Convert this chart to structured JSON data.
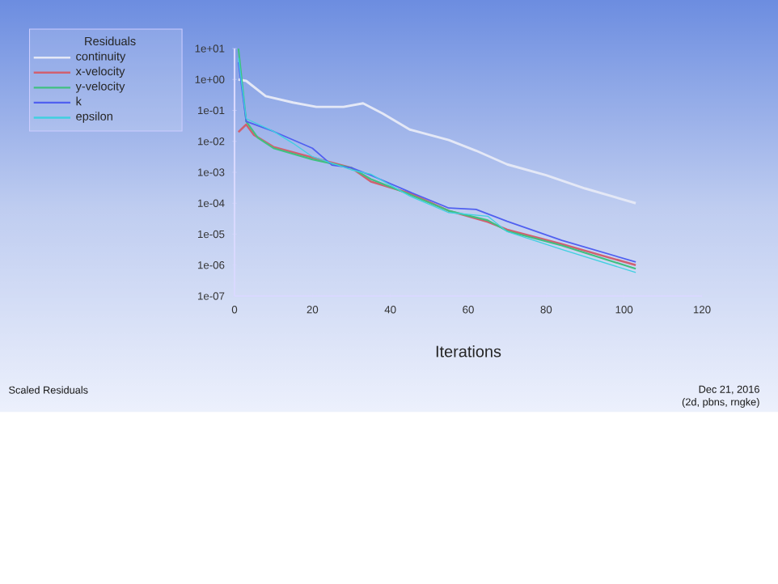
{
  "chart_data": {
    "type": "line",
    "xlabel": "Iterations",
    "legend_title": "Residuals",
    "annotations": [
      "Scaled Residuals",
      "Dec 21, 2016",
      "(2d, pbns, rngke)"
    ],
    "xlim": [
      0,
      120
    ],
    "xticks": [
      0,
      20,
      40,
      60,
      80,
      100,
      120
    ],
    "ylim": [
      1e-07,
      10
    ],
    "yticks": [
      {
        "value": 1e-07,
        "label": "1e-07"
      },
      {
        "value": 1e-06,
        "label": "1e-06"
      },
      {
        "value": 1e-05,
        "label": "1e-05"
      },
      {
        "value": 0.0001,
        "label": "1e-04"
      },
      {
        "value": 0.001,
        "label": "1e-03"
      },
      {
        "value": 0.01,
        "label": "1e-02"
      },
      {
        "value": 0.1,
        "label": "1e-01"
      },
      {
        "value": 1,
        "label": "1e+00"
      },
      {
        "value": 10,
        "label": "1e+01"
      }
    ],
    "log": "y",
    "grid": false,
    "legend": "top left",
    "marker": "none",
    "line_style": "solid",
    "series": [
      {
        "name": "continuity",
        "color": "#e4e8f6",
        "x": [
          1,
          3,
          8,
          15,
          21,
          28,
          33,
          38,
          45,
          55,
          62,
          70,
          80,
          90,
          103
        ],
        "values": [
          1.0,
          0.9,
          0.29,
          0.18,
          0.13,
          0.13,
          0.17,
          0.08,
          0.024,
          0.011,
          0.005,
          0.0018,
          0.0008,
          0.0003,
          0.0001
        ]
      },
      {
        "name": "x-velocity",
        "color": "#d06070",
        "x": [
          1,
          3,
          5,
          10,
          20,
          30,
          35,
          45,
          55,
          65,
          70,
          84,
          103
        ],
        "values": [
          0.02,
          0.035,
          0.016,
          0.0066,
          0.003,
          0.0014,
          0.0005,
          0.00021,
          5.7e-05,
          2.5e-05,
          1.4e-05,
          4.8e-06,
          1e-06
        ]
      },
      {
        "name": "y-velocity",
        "color": "#40c080",
        "x": [
          1,
          3,
          6,
          10,
          20,
          30,
          35,
          45,
          55,
          65,
          70,
          84,
          103
        ],
        "values": [
          10,
          0.044,
          0.013,
          0.006,
          0.0026,
          0.0014,
          0.0006,
          0.00019,
          5.7e-05,
          2.8e-05,
          1.26e-05,
          4.3e-06,
          7.6e-07
        ]
      },
      {
        "name": "k",
        "color": "#5060f0",
        "x": [
          1,
          3,
          10,
          20,
          25,
          30,
          35,
          45,
          55,
          62,
          70,
          84,
          103
        ],
        "values": [
          3.6,
          0.044,
          0.021,
          0.006,
          0.0017,
          0.0014,
          0.0008,
          0.00023,
          7e-05,
          6.3e-05,
          2.6e-05,
          6.3e-06,
          1.26e-06
        ]
      },
      {
        "name": "epsilon",
        "color": "#40d0e0",
        "x": [
          1,
          3,
          10,
          15,
          20,
          30,
          35,
          45,
          55,
          65,
          70,
          84,
          103
        ],
        "values": [
          5,
          0.054,
          0.021,
          0.0087,
          0.0032,
          0.0012,
          0.00087,
          0.00017,
          5e-05,
          3.8e-05,
          1.2e-05,
          3.2e-06,
          5.8e-07
        ]
      }
    ]
  }
}
